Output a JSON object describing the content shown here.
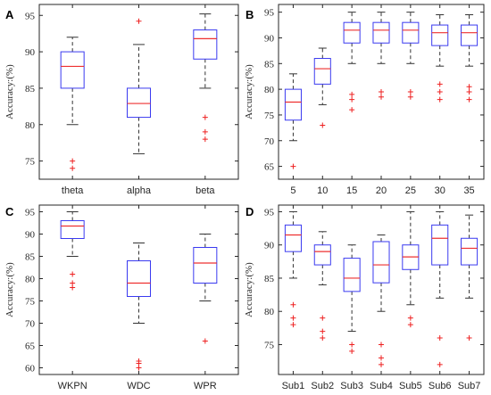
{
  "colors": {
    "box": "#3a3af0",
    "median": "#ee3030",
    "whisker": "#333333",
    "outlier": "#ee2020",
    "frame": "#262626"
  },
  "chart_data": [
    {
      "panel": "A",
      "type": "box",
      "ylabel": "Accuracy:(%)",
      "ylim": [
        72.5,
        96.5
      ],
      "yticks": [
        75,
        80,
        85,
        90,
        95
      ],
      "categories": [
        "theta",
        "alpha",
        "beta"
      ],
      "boxes": [
        {
          "whisker_low": 80,
          "q1": 85,
          "median": 88,
          "q3": 90,
          "whisker_high": 92,
          "outliers": [
            74,
            75
          ]
        },
        {
          "whisker_low": 76,
          "q1": 81,
          "median": 82.9,
          "q3": 85,
          "whisker_high": 91,
          "outliers": [
            94.2
          ]
        },
        {
          "whisker_low": 85,
          "q1": 89,
          "median": 91.8,
          "q3": 93,
          "whisker_high": 95.2,
          "outliers": [
            78,
            79,
            81
          ]
        }
      ]
    },
    {
      "panel": "B",
      "type": "box",
      "ylabel": "Accuracy:(%)",
      "ylim": [
        62.5,
        96.5
      ],
      "yticks": [
        65,
        70,
        75,
        80,
        85,
        90,
        95
      ],
      "categories": [
        "5",
        "10",
        "15",
        "20",
        "25",
        "30",
        "35"
      ],
      "boxes": [
        {
          "whisker_low": 70,
          "q1": 74,
          "median": 77.5,
          "q3": 80,
          "whisker_high": 83,
          "outliers": [
            65
          ]
        },
        {
          "whisker_low": 77,
          "q1": 81,
          "median": 84,
          "q3": 86,
          "whisker_high": 88,
          "outliers": [
            73
          ]
        },
        {
          "whisker_low": 85,
          "q1": 89,
          "median": 91.5,
          "q3": 93,
          "whisker_high": 95,
          "outliers": [
            76,
            78,
            79
          ]
        },
        {
          "whisker_low": 85,
          "q1": 89,
          "median": 91.5,
          "q3": 93,
          "whisker_high": 95,
          "outliers": [
            78.5,
            79.5
          ]
        },
        {
          "whisker_low": 85,
          "q1": 89,
          "median": 91.5,
          "q3": 93,
          "whisker_high": 95,
          "outliers": [
            78.5,
            79.5
          ]
        },
        {
          "whisker_low": 84.5,
          "q1": 88.5,
          "median": 91,
          "q3": 92.5,
          "whisker_high": 94.5,
          "outliers": [
            78,
            79.5,
            81
          ]
        },
        {
          "whisker_low": 84.5,
          "q1": 88.5,
          "median": 91,
          "q3": 92.5,
          "whisker_high": 94.5,
          "outliers": [
            78,
            79.5,
            80.5
          ]
        }
      ]
    },
    {
      "panel": "C",
      "type": "box",
      "ylabel": "Accuracy:(%)",
      "ylim": [
        58.5,
        96.5
      ],
      "yticks": [
        60,
        65,
        70,
        75,
        80,
        85,
        90,
        95
      ],
      "categories": [
        "WKPN",
        "WDC",
        "WPR"
      ],
      "boxes": [
        {
          "whisker_low": 85,
          "q1": 89,
          "median": 91.8,
          "q3": 93,
          "whisker_high": 95,
          "outliers": [
            78,
            79,
            81
          ]
        },
        {
          "whisker_low": 70,
          "q1": 76,
          "median": 79,
          "q3": 84,
          "whisker_high": 88,
          "outliers": [
            60,
            61,
            61.5
          ]
        },
        {
          "whisker_low": 75,
          "q1": 79,
          "median": 83.5,
          "q3": 87,
          "whisker_high": 90,
          "outliers": [
            66
          ]
        }
      ]
    },
    {
      "panel": "D",
      "type": "box",
      "ylabel": "Accuracy:(%)",
      "ylim": [
        70.5,
        96
      ],
      "yticks": [
        75,
        80,
        85,
        90,
        95
      ],
      "categories": [
        "Sub1",
        "Sub2",
        "Sub3",
        "Sub4",
        "Sub5",
        "Sub6",
        "Sub7"
      ],
      "boxes": [
        {
          "whisker_low": 85,
          "q1": 89,
          "median": 91.5,
          "q3": 93,
          "whisker_high": 95,
          "outliers": [
            78,
            79,
            81
          ]
        },
        {
          "whisker_low": 84,
          "q1": 87,
          "median": 89,
          "q3": 90,
          "whisker_high": 92,
          "outliers": [
            76,
            77,
            79
          ]
        },
        {
          "whisker_low": 77,
          "q1": 83,
          "median": 85,
          "q3": 88,
          "whisker_high": 90,
          "outliers": [
            74,
            75
          ]
        },
        {
          "whisker_low": 80,
          "q1": 84.3,
          "median": 87,
          "q3": 90.5,
          "whisker_high": 91.5,
          "outliers": [
            72,
            73,
            75
          ]
        },
        {
          "whisker_low": 81,
          "q1": 86.3,
          "median": 88.2,
          "q3": 90,
          "whisker_high": 95,
          "outliers": [
            78,
            79
          ]
        },
        {
          "whisker_low": 82,
          "q1": 87,
          "median": 91,
          "q3": 93,
          "whisker_high": 95,
          "outliers": [
            72,
            76
          ]
        },
        {
          "whisker_low": 82,
          "q1": 87,
          "median": 89.5,
          "q3": 91,
          "whisker_high": 94.5,
          "outliers": [
            76
          ]
        }
      ]
    }
  ]
}
